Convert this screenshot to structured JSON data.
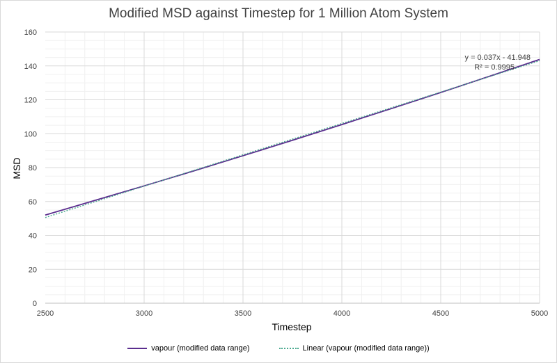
{
  "chart_data": {
    "type": "line",
    "title": "Modified MSD against Timestep for 1 Million Atom System",
    "xlabel": "Timestep",
    "ylabel": "MSD",
    "xlim": [
      2500,
      5000
    ],
    "ylim": [
      0,
      160
    ],
    "xticks": [
      "2500",
      "3000",
      "3500",
      "4000",
      "4500",
      "5000"
    ],
    "yticks": [
      "0",
      "20",
      "40",
      "60",
      "80",
      "100",
      "120",
      "140",
      "160"
    ],
    "series": [
      {
        "name": "vapour (modified data range)",
        "color": "#5b2d8e",
        "style": "solid",
        "x": [
          2500,
          2750,
          3000,
          3250,
          3500,
          3750,
          4000,
          4250,
          4500,
          4750,
          5000
        ],
        "y": [
          52.0,
          60.6,
          69.2,
          78.0,
          87.0,
          96.1,
          105.4,
          114.8,
          124.3,
          134.0,
          143.8
        ]
      },
      {
        "name": "Linear (vapour (modified data range))",
        "color": "#4aa98f",
        "style": "dotted",
        "x": [
          2500,
          5000
        ],
        "y": [
          50.552,
          143.052
        ]
      }
    ],
    "annotation": {
      "equation": "y = 0.037x - 41.948",
      "r2": "R² = 0.9995"
    },
    "grid": true,
    "legend_position": "bottom"
  }
}
